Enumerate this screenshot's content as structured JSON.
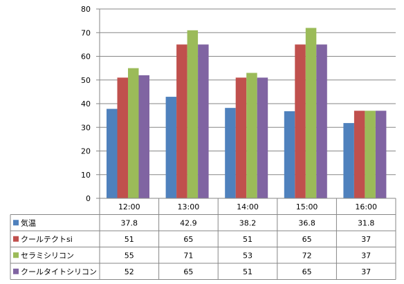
{
  "chart_data": {
    "type": "bar",
    "categories": [
      "12:00",
      "13:00",
      "14:00",
      "15:00",
      "16:00"
    ],
    "series": [
      {
        "name": "気温",
        "color": "#4F81BD",
        "values": [
          37.8,
          42.9,
          38.2,
          36.8,
          31.8
        ],
        "labels": [
          "37.8",
          "42.9",
          "38.2",
          "36.8",
          "31.8"
        ]
      },
      {
        "name": "クールテクトsi",
        "color": "#C0504D",
        "values": [
          51,
          65,
          51,
          65,
          37
        ],
        "labels": [
          "51",
          "65",
          "51",
          "65",
          "37"
        ]
      },
      {
        "name": "セラミシリコン",
        "color": "#9BBB59",
        "values": [
          55,
          71,
          53,
          72,
          37
        ],
        "labels": [
          "55",
          "71",
          "53",
          "72",
          "37"
        ]
      },
      {
        "name": "クールタイトシリコン",
        "color": "#8064A2",
        "values": [
          52,
          65,
          51,
          65,
          37
        ],
        "labels": [
          "52",
          "65",
          "51",
          "65",
          "37"
        ]
      }
    ],
    "yticks": [
      "0",
      "10",
      "20",
      "30",
      "40",
      "50",
      "60",
      "70",
      "80"
    ],
    "ylim": [
      0,
      80
    ],
    "grid": true,
    "legend": "data-table-left"
  }
}
